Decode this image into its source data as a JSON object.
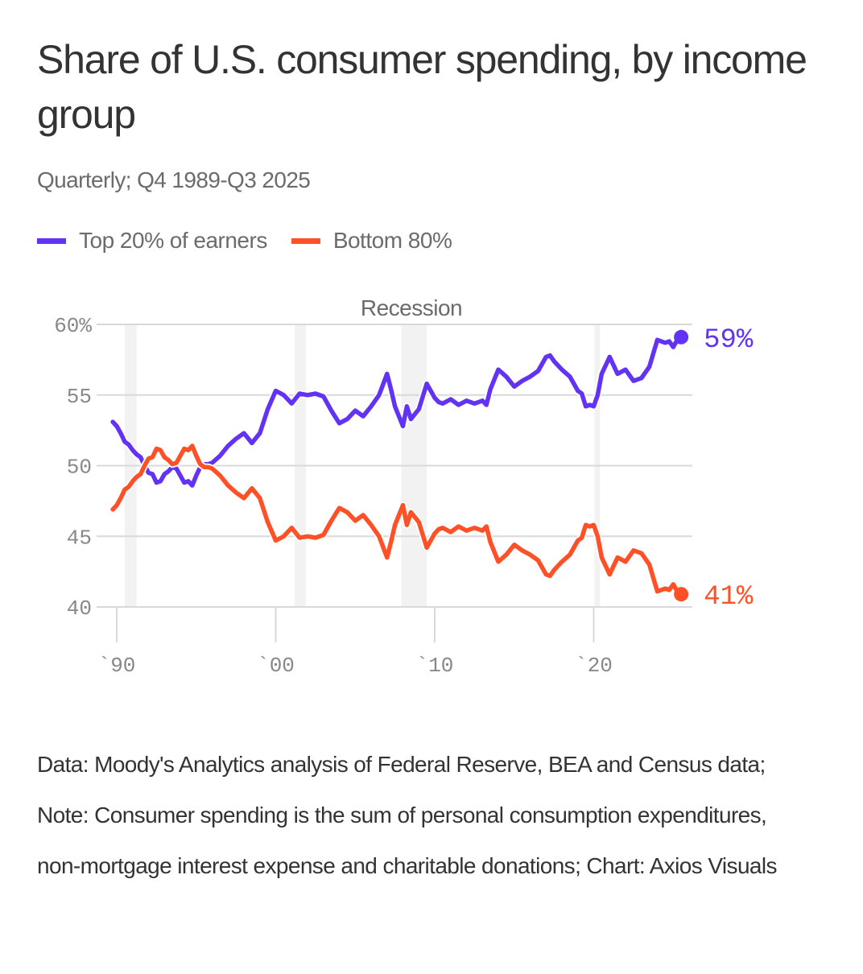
{
  "title": "Share of U.S. consumer spending, by income group",
  "subtitle": "Quarterly; Q4 1989-Q3 2025",
  "legend": [
    {
      "label": "Top 20% of earners",
      "color": "#6233f5"
    },
    {
      "label": "Bottom 80%",
      "color": "#ff5028"
    }
  ],
  "footer": "Data: Moody's Analytics analysis of Federal Reserve, BEA and Census data; Note: Consumer spending is the sum of personal consumption expenditures, non-mortgage interest expense and charitable donations; Chart: Axios Visuals",
  "chart_data": {
    "type": "line",
    "title": "Share of U.S. consumer spending, by income group",
    "subtitle": "Quarterly; Q4 1989-Q3 2025",
    "xlabel": "",
    "ylabel": "",
    "xlim": [
      1989.75,
      2025.5
    ],
    "ylim": [
      40,
      60
    ],
    "yticks": [
      40,
      45,
      50,
      55,
      60
    ],
    "ytick_labels": [
      "40",
      "45",
      "50",
      "55",
      "60%"
    ],
    "xticks": [
      1990,
      2000,
      2010,
      2020
    ],
    "xtick_labels": [
      "`90",
      "`00",
      "`10",
      "`20"
    ],
    "grid": true,
    "legend_position": "top-left",
    "recession_label": "Recession",
    "recessions": [
      [
        1990.5,
        1991.25
      ],
      [
        2001.2,
        2001.9
      ],
      [
        2007.9,
        2009.5
      ],
      [
        2020.05,
        2020.4
      ]
    ],
    "end_labels": [
      {
        "series": "Top 20% of earners",
        "label": "59%",
        "value": 59.1
      },
      {
        "series": "Bottom 80%",
        "label": "41%",
        "value": 40.9
      }
    ],
    "x": [
      1989.75,
      1990.0,
      1990.25,
      1990.5,
      1990.75,
      1991.0,
      1991.25,
      1991.5,
      1991.75,
      1992.0,
      1992.25,
      1992.5,
      1992.75,
      1993.0,
      1993.25,
      1993.5,
      1993.75,
      1994.0,
      1994.25,
      1994.5,
      1994.75,
      1995.0,
      1995.25,
      1995.5,
      1995.75,
      1996.0,
      1996.5,
      1997.0,
      1997.5,
      1998.0,
      1998.5,
      1999.0,
      1999.5,
      2000.0,
      2000.5,
      2001.0,
      2001.5,
      2002.0,
      2002.5,
      2003.0,
      2003.5,
      2004.0,
      2004.5,
      2005.0,
      2005.5,
      2006.0,
      2006.5,
      2007.0,
      2007.25,
      2007.5,
      2008.0,
      2008.25,
      2008.5,
      2009.0,
      2009.5,
      2010.0,
      2010.25,
      2010.5,
      2011.0,
      2011.5,
      2012.0,
      2012.5,
      2013.0,
      2013.25,
      2013.5,
      2014.0,
      2014.5,
      2015.0,
      2015.5,
      2016.0,
      2016.5,
      2017.0,
      2017.25,
      2017.5,
      2018.0,
      2018.5,
      2019.0,
      2019.25,
      2019.5,
      2019.75,
      2020.0,
      2020.25,
      2020.5,
      2021.0,
      2021.5,
      2022.0,
      2022.5,
      2023.0,
      2023.5,
      2024.0,
      2024.25,
      2024.5,
      2024.75,
      2025.0,
      2025.25,
      2025.5
    ],
    "series": [
      {
        "name": "Top 20% of earners",
        "color": "#6233f5",
        "values": [
          53.1,
          52.8,
          52.3,
          51.7,
          51.5,
          51.1,
          50.8,
          50.6,
          50.0,
          49.5,
          49.4,
          48.8,
          48.9,
          49.4,
          49.6,
          49.9,
          49.8,
          49.3,
          48.8,
          48.9,
          48.6,
          49.3,
          49.9,
          50.1,
          50.1,
          50.2,
          50.7,
          51.4,
          51.9,
          52.3,
          51.6,
          52.3,
          54.0,
          55.3,
          55.0,
          54.4,
          55.1,
          55.0,
          55.1,
          54.9,
          53.9,
          53.0,
          53.3,
          53.9,
          53.5,
          54.2,
          55.0,
          56.5,
          55.4,
          54.2,
          52.8,
          54.2,
          53.3,
          54.0,
          55.8,
          54.8,
          54.5,
          54.4,
          54.7,
          54.3,
          54.6,
          54.4,
          54.6,
          54.3,
          55.4,
          56.8,
          56.3,
          55.6,
          56.0,
          56.3,
          56.7,
          57.7,
          57.8,
          57.4,
          56.8,
          56.3,
          55.3,
          55.1,
          54.2,
          54.3,
          54.2,
          55.0,
          56.5,
          57.7,
          56.5,
          56.8,
          56.0,
          56.2,
          57.0,
          58.9,
          58.8,
          58.7,
          58.8,
          58.4,
          58.9,
          59.1
        ]
      },
      {
        "name": "Bottom 80%",
        "color": "#ff5028",
        "values": [
          46.9,
          47.2,
          47.7,
          48.3,
          48.5,
          48.9,
          49.2,
          49.4,
          50.0,
          50.5,
          50.6,
          51.2,
          51.1,
          50.6,
          50.4,
          50.1,
          50.2,
          50.7,
          51.2,
          51.1,
          51.4,
          50.7,
          50.1,
          49.9,
          49.9,
          49.8,
          49.3,
          48.6,
          48.1,
          47.7,
          48.4,
          47.7,
          46.0,
          44.7,
          45.0,
          45.6,
          44.9,
          45.0,
          44.9,
          45.1,
          46.1,
          47.0,
          46.7,
          46.1,
          46.5,
          45.8,
          45.0,
          43.5,
          44.6,
          45.8,
          47.2,
          45.8,
          46.7,
          46.0,
          44.2,
          45.2,
          45.5,
          45.6,
          45.3,
          45.7,
          45.4,
          45.6,
          45.4,
          45.7,
          44.6,
          43.2,
          43.7,
          44.4,
          44.0,
          43.7,
          43.3,
          42.3,
          42.2,
          42.6,
          43.2,
          43.7,
          44.7,
          44.9,
          45.8,
          45.7,
          45.8,
          45.0,
          43.5,
          42.3,
          43.5,
          43.2,
          44.0,
          43.8,
          43.0,
          41.1,
          41.2,
          41.3,
          41.2,
          41.6,
          41.1,
          40.9
        ]
      }
    ]
  }
}
